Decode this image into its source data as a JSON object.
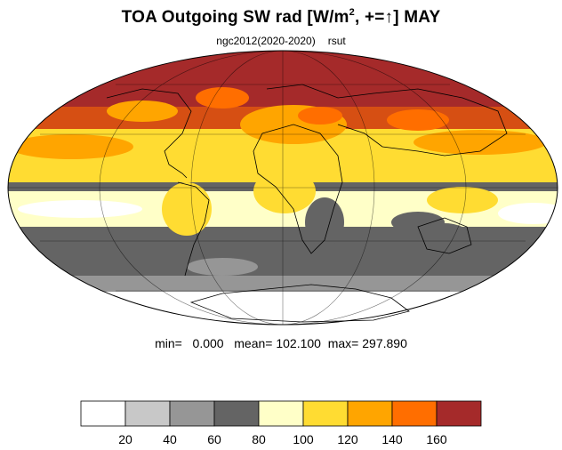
{
  "title": {
    "main": "TOA Outgoing SW rad [W/m",
    "sup": "2",
    "rest": ", +=↑] MAY"
  },
  "subtitle": {
    "left": "ngc2012(2020-2020)",
    "right": "rsut"
  },
  "stats": {
    "min_label": "min=",
    "min": "0.000",
    "mean_label": "mean=",
    "mean": "102.100",
    "max_label": "max=",
    "max": "297.890"
  },
  "colorbar": {
    "colors": [
      "#ffffff",
      "#c8c8c8",
      "#969696",
      "#646464",
      "#ffffc8",
      "#ffdc32",
      "#ffa500",
      "#ff6e00",
      "#a52a2a"
    ],
    "labels": [
      "20",
      "40",
      "60",
      "80",
      "100",
      "120",
      "140",
      "160"
    ]
  },
  "map_colors": {
    "ocean_white": "#ffffff",
    "light_gray": "#c8c8c8",
    "mid_gray": "#969696",
    "dark_gray": "#646464",
    "pale_yellow": "#ffffc8",
    "yellow": "#ffdc32",
    "orange": "#ffa500",
    "dark_orange": "#ff6e00",
    "brown": "#a52a2a"
  }
}
